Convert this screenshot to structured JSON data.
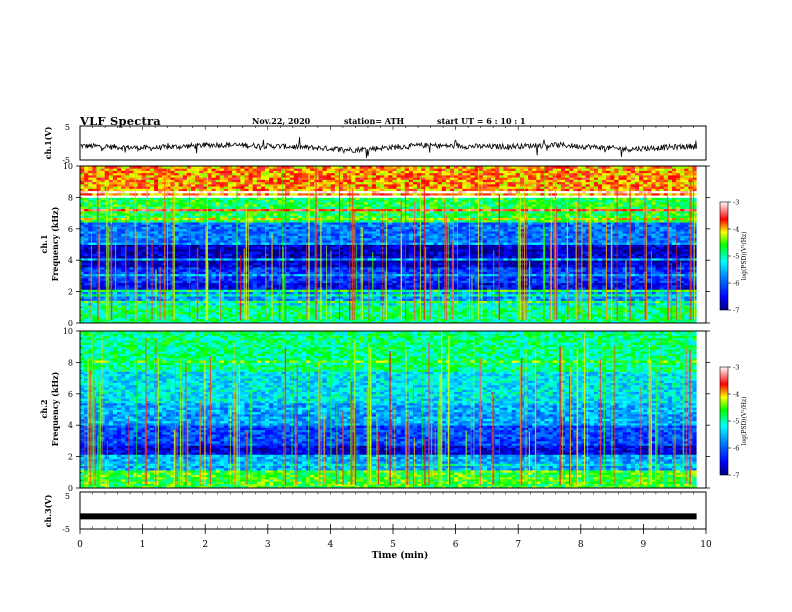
{
  "header": {
    "title": "VLF Spectra",
    "date": "Nov.22, 2020",
    "station": "station= ATH",
    "start": "start  UT  =   6  : 10 : 1"
  },
  "chart_data": [
    {
      "type": "line",
      "panel": "ch1-waveform",
      "ylabel": "ch.1(V)",
      "ylim": [
        -5,
        5
      ],
      "yticks": [
        "5",
        "-5"
      ],
      "xlim": [
        0,
        10
      ],
      "series": [
        {
          "values": [
            -0.8,
            -1.5,
            -0.5,
            -1.0,
            -2.0,
            -0.7,
            -1.1,
            -0.6,
            -1.8,
            -0.9
          ]
        }
      ]
    },
    {
      "type": "heatmap",
      "panel": "ch1-spectrogram",
      "ylabel": "ch.1\nFrequency (kHz)",
      "ylim": [
        0,
        10
      ],
      "yticks": [
        "0",
        "2",
        "4",
        "6",
        "8",
        "10"
      ],
      "xlim": [
        0,
        9.85
      ],
      "colorbar": {
        "label": "log(PSD)(V²/Hz)",
        "range": [
          -7,
          -3
        ],
        "ticks": [
          "-3",
          "-4",
          "-5",
          "-6",
          "-7"
        ]
      },
      "bands": [
        {
          "from": 0,
          "to": 1.2,
          "level": -4.9
        },
        {
          "from": 1.2,
          "to": 2.2,
          "level": -5.7
        },
        {
          "from": 2.2,
          "to": 2.6,
          "level": -6.5
        },
        {
          "from": 2.6,
          "to": 3.6,
          "level": -6.2
        },
        {
          "from": 3.6,
          "to": 5.2,
          "level": -6.7
        },
        {
          "from": 5.2,
          "to": 6.5,
          "level": -5.9
        },
        {
          "from": 6.5,
          "to": 8.0,
          "level": -4.7
        },
        {
          "from": 8.0,
          "to": 10,
          "level": -3.9
        }
      ]
    },
    {
      "type": "heatmap",
      "panel": "ch2-spectrogram",
      "ylabel": "ch.2\nFrequency (kHz)",
      "ylim": [
        0,
        10
      ],
      "yticks": [
        "0",
        "2",
        "4",
        "6",
        "8",
        "10"
      ],
      "xlim": [
        0,
        9.85
      ],
      "colorbar": {
        "label": "log(PSD)(V²/Hz)",
        "range": [
          -7,
          -3
        ],
        "ticks": [
          "-3",
          "-4",
          "-5",
          "-6",
          "-7"
        ]
      },
      "bands": [
        {
          "from": 0,
          "to": 1.2,
          "level": -4.6
        },
        {
          "from": 1.2,
          "to": 2.2,
          "level": -5.6
        },
        {
          "from": 2.2,
          "to": 2.7,
          "level": -6.6
        },
        {
          "from": 2.7,
          "to": 4.0,
          "level": -6.1
        },
        {
          "from": 4.0,
          "to": 5.5,
          "level": -5.6
        },
        {
          "from": 5.5,
          "to": 7.5,
          "level": -5.3
        },
        {
          "from": 7.5,
          "to": 10,
          "level": -4.9
        }
      ]
    },
    {
      "type": "line",
      "panel": "ch3-waveform",
      "ylabel": "ch.3(V)",
      "ylim": [
        -5,
        5
      ],
      "yticks": [
        "5",
        "-5"
      ],
      "xlim": [
        0,
        9.85
      ],
      "series": [
        {
          "values": [
            -1.6,
            -1.6
          ]
        }
      ]
    }
  ],
  "xaxis": {
    "label": "Time (min)",
    "ticks": [
      "0",
      "1",
      "2",
      "3",
      "4",
      "5",
      "6",
      "7",
      "8",
      "9",
      "10"
    ]
  },
  "colors": {
    "axes": "#000000",
    "trace": "#000000",
    "background": "#ffffff"
  }
}
